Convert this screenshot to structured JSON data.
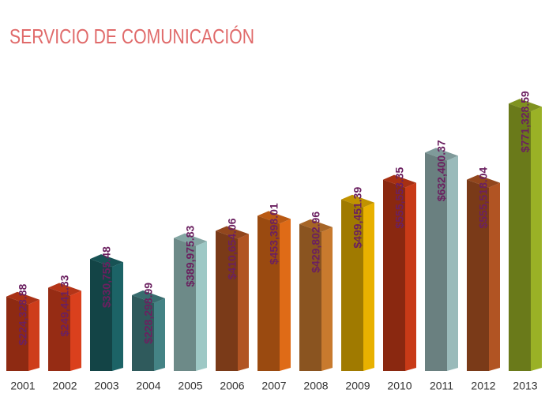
{
  "chart_data": {
    "type": "bar3d",
    "title": "SERVICIO DE COMUNICACIÓN",
    "categories": [
      "2001",
      "2002",
      "2003",
      "2004",
      "2005",
      "2006",
      "2007",
      "2008",
      "2009",
      "2010",
      "2011",
      "2012",
      "2013"
    ],
    "values": [
      224328.88,
      249441.33,
      330755.48,
      228298.99,
      389975.83,
      410654.06,
      453398.01,
      429802.96,
      499451.39,
      555553.35,
      632400.37,
      555518.04,
      771328.59
    ],
    "value_labels": [
      "$224,328.88",
      "$249,441.33",
      "$330,755.48",
      "$228,298.99",
      "$389,975.83",
      "$410,654.06",
      "$453,398.01",
      "$429,802.96",
      "$499,451.39",
      "$555,553.35",
      "$632,400.37",
      "$555,518.04",
      "$771,328.59"
    ],
    "colors": [
      "#8e2a12",
      "#962c14",
      "#134446",
      "#2f5a5c",
      "#6d8a88",
      "#7a3a18",
      "#9a4a10",
      "#8a5420",
      "#a07a00",
      "#8a2810",
      "#6a8080",
      "#7a3a18",
      "#6a7a1a"
    ]
  }
}
